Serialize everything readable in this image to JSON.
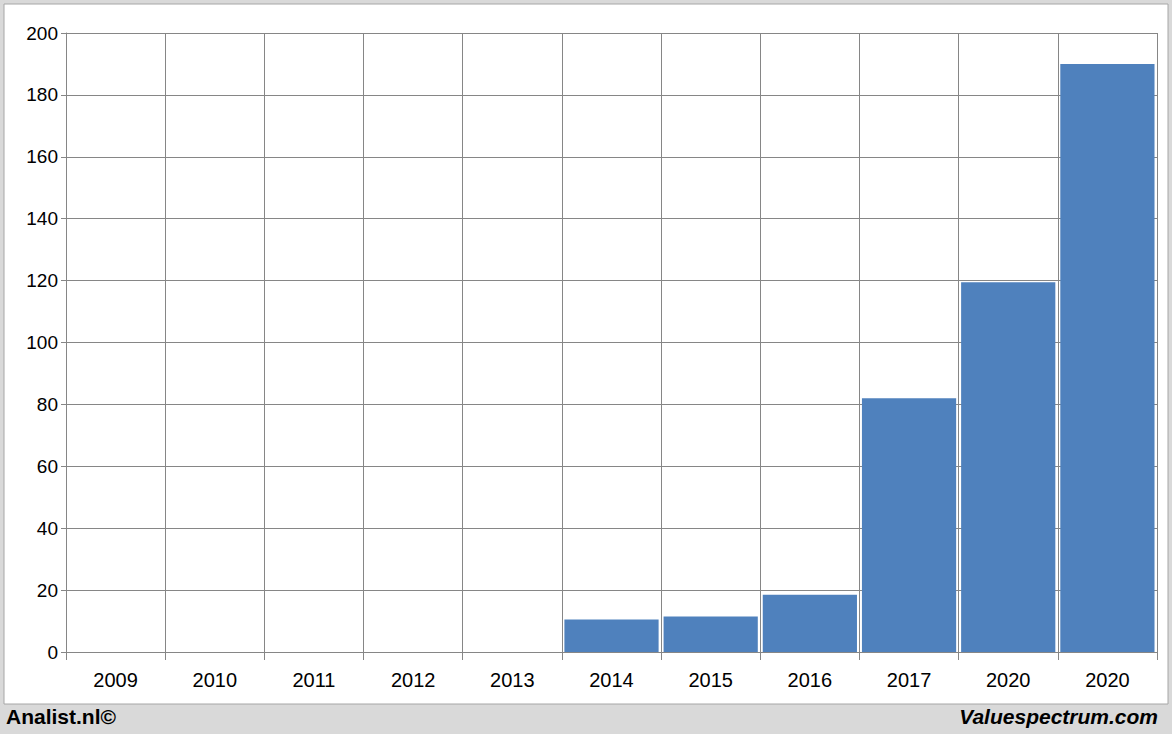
{
  "chart_data": {
    "type": "bar",
    "categories": [
      "2009",
      "2010",
      "2011",
      "2012",
      "2013",
      "2014",
      "2015",
      "2016",
      "2017",
      "2020",
      "2020"
    ],
    "values": [
      null,
      null,
      null,
      null,
      null,
      10.5,
      11.5,
      18.5,
      82,
      119.5,
      190
    ],
    "color": "#4f81bd",
    "ylim": [
      0,
      200
    ],
    "yticks": [
      0,
      20,
      40,
      60,
      80,
      100,
      120,
      140,
      160,
      180,
      200
    ],
    "grid": true,
    "annotations": [
      {
        "text": "Analist.nl©"
      },
      {
        "text": "Valuespectrum.com"
      }
    ]
  }
}
